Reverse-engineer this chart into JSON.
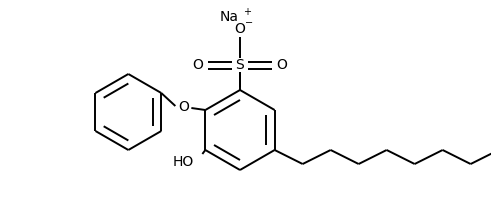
{
  "background_color": "#ffffff",
  "line_color": "#000000",
  "line_width": 1.4,
  "font_size": 10,
  "small_font_size": 7,
  "figsize": [
    4.91,
    1.99
  ],
  "dpi": 100,
  "na_label": "Na",
  "na_charge": "+",
  "o_minus_label": "O",
  "o_minus_charge": "−",
  "s_label": "S",
  "o_label": "O",
  "ho_label": "HO"
}
